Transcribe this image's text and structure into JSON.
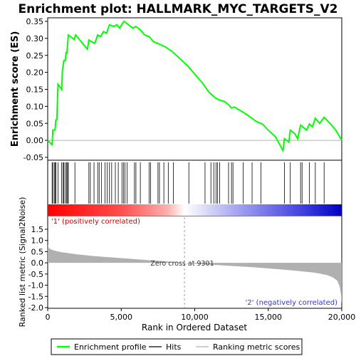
{
  "chart_data": {
    "title": "Enrichment plot: HALLMARK_MYC_TARGETS_V2",
    "x_axis": {
      "label": "Rank in Ordered Dataset",
      "range": [
        0,
        20000
      ],
      "ticks": [
        {
          "value": 0,
          "label": "0"
        },
        {
          "value": 5000,
          "label": "5,000"
        },
        {
          "value": 10000,
          "label": "10,000"
        },
        {
          "value": 15000,
          "label": "15,000"
        },
        {
          "value": 20000,
          "label": "20,000"
        }
      ]
    },
    "enrichment_panel": {
      "type": "line",
      "ylabel": "Enrichment score (ES)",
      "ylim": [
        -0.05,
        0.37
      ],
      "ticks": [
        {
          "value": 0.35,
          "label": "0.35"
        },
        {
          "value": 0.3,
          "label": "0.30"
        },
        {
          "value": 0.25,
          "label": "0.25"
        },
        {
          "value": 0.2,
          "label": "0.20"
        },
        {
          "value": 0.15,
          "label": "0.15"
        },
        {
          "value": 0.1,
          "label": "0.10"
        },
        {
          "value": 0.05,
          "label": "0.05"
        },
        {
          "value": 0.0,
          "label": "0.00"
        },
        {
          "value": -0.05,
          "label": "-0.05"
        }
      ],
      "color": "#00ff00",
      "points": [
        [
          0,
          0.0
        ],
        [
          300,
          -0.013
        ],
        [
          350,
          0.03
        ],
        [
          500,
          0.03
        ],
        [
          550,
          0.06
        ],
        [
          620,
          0.06
        ],
        [
          700,
          0.165
        ],
        [
          950,
          0.15
        ],
        [
          1000,
          0.205
        ],
        [
          1100,
          0.235
        ],
        [
          1200,
          0.235
        ],
        [
          1250,
          0.26
        ],
        [
          1300,
          0.255
        ],
        [
          1350,
          0.28
        ],
        [
          1400,
          0.31
        ],
        [
          1800,
          0.297
        ],
        [
          1900,
          0.31
        ],
        [
          2700,
          0.268
        ],
        [
          2800,
          0.295
        ],
        [
          3000,
          0.29
        ],
        [
          3200,
          0.285
        ],
        [
          3400,
          0.31
        ],
        [
          3600,
          0.305
        ],
        [
          3800,
          0.32
        ],
        [
          4000,
          0.315
        ],
        [
          4200,
          0.34
        ],
        [
          4500,
          0.335
        ],
        [
          4700,
          0.34
        ],
        [
          4900,
          0.33
        ],
        [
          5100,
          0.345
        ],
        [
          5200,
          0.35
        ],
        [
          5500,
          0.34
        ],
        [
          5800,
          0.33
        ],
        [
          6000,
          0.335
        ],
        [
          6300,
          0.325
        ],
        [
          6600,
          0.31
        ],
        [
          6900,
          0.305
        ],
        [
          7200,
          0.29
        ],
        [
          7500,
          0.285
        ],
        [
          8000,
          0.275
        ],
        [
          8500,
          0.26
        ],
        [
          9000,
          0.24
        ],
        [
          9500,
          0.22
        ],
        [
          10000,
          0.195
        ],
        [
          10500,
          0.17
        ],
        [
          11000,
          0.14
        ],
        [
          11400,
          0.125
        ],
        [
          11700,
          0.118
        ],
        [
          12000,
          0.115
        ],
        [
          12300,
          0.105
        ],
        [
          12500,
          0.095
        ],
        [
          12700,
          0.098
        ],
        [
          13000,
          0.09
        ],
        [
          13400,
          0.08
        ],
        [
          13800,
          0.068
        ],
        [
          14200,
          0.055
        ],
        [
          14600,
          0.048
        ],
        [
          15000,
          0.03
        ],
        [
          15500,
          0.01
        ],
        [
          16000,
          -0.03
        ],
        [
          16100,
          0.005
        ],
        [
          16400,
          -0.005
        ],
        [
          16500,
          0.03
        ],
        [
          16800,
          0.02
        ],
        [
          17000,
          0.005
        ],
        [
          17200,
          0.045
        ],
        [
          17600,
          0.03
        ],
        [
          17800,
          0.048
        ],
        [
          18000,
          0.04
        ],
        [
          18200,
          0.065
        ],
        [
          18500,
          0.05
        ],
        [
          18800,
          0.068
        ],
        [
          19200,
          0.05
        ],
        [
          19600,
          0.03
        ],
        [
          20000,
          0.0
        ]
      ]
    },
    "hits_panel": {
      "positions": [
        300,
        350,
        450,
        520,
        560,
        700,
        950,
        1050,
        1100,
        1200,
        1280,
        1350,
        1400,
        1850,
        2800,
        2900,
        3150,
        3400,
        3500,
        3650,
        3900,
        4050,
        4200,
        4350,
        4600,
        4800,
        5050,
        5150,
        5250,
        5400,
        5900,
        6000,
        6300,
        6900,
        7000,
        7500,
        7600,
        7900,
        8200,
        8550,
        9600,
        10700,
        11100,
        11300,
        11450,
        11550,
        11700,
        12300,
        12500,
        12600,
        13300,
        13900,
        14500,
        16100,
        16500,
        17200,
        17300,
        17800,
        18200,
        18800
      ]
    },
    "metric_panel": {
      "type": "area",
      "ylabel": "Ranked list metric (Signal2Noise)",
      "ylim": [
        -2.0,
        1.6
      ],
      "ticks": [
        {
          "value": 1.5,
          "label": "1.5"
        },
        {
          "value": 1.0,
          "label": "1.0"
        },
        {
          "value": 0.5,
          "label": "0.5"
        },
        {
          "value": 0.0,
          "label": "0.0"
        },
        {
          "value": -0.5,
          "label": "-0.5"
        },
        {
          "value": -1.0,
          "label": "-1.0"
        },
        {
          "value": -1.5,
          "label": "-1.5"
        },
        {
          "value": -2.0,
          "label": "-2.0"
        }
      ],
      "fill_color": "#b0b0b0",
      "points": [
        [
          0,
          0.8
        ],
        [
          100,
          0.65
        ],
        [
          300,
          0.58
        ],
        [
          600,
          0.52
        ],
        [
          1000,
          0.47
        ],
        [
          2000,
          0.38
        ],
        [
          3000,
          0.31
        ],
        [
          4000,
          0.26
        ],
        [
          5000,
          0.21
        ],
        [
          6000,
          0.16
        ],
        [
          7000,
          0.11
        ],
        [
          8000,
          0.07
        ],
        [
          9301,
          0.0
        ],
        [
          10000,
          -0.04
        ],
        [
          11000,
          -0.08
        ],
        [
          12000,
          -0.12
        ],
        [
          13000,
          -0.16
        ],
        [
          14000,
          -0.2
        ],
        [
          15000,
          -0.25
        ],
        [
          16000,
          -0.3
        ],
        [
          17000,
          -0.36
        ],
        [
          18000,
          -0.43
        ],
        [
          18500,
          -0.48
        ],
        [
          19000,
          -0.55
        ],
        [
          19400,
          -0.65
        ],
        [
          19700,
          -0.8
        ],
        [
          19850,
          -1.05
        ],
        [
          19950,
          -1.4
        ],
        [
          20000,
          -1.85
        ]
      ],
      "zero_cross_label": "Zero cross at 9301",
      "zero_cross": 9301,
      "positive_label": "'1' (positively correlated)",
      "positive_color": "#cc0000",
      "negative_label": "'2' (negatively correlated)",
      "negative_color": "#3333cc"
    },
    "legend": {
      "placement": "bottom",
      "items": [
        {
          "label": "Enrichment profile",
          "color": "#00ff00"
        },
        {
          "label": "Hits",
          "color": "#000000"
        },
        {
          "label": "Ranking metric scores",
          "color": "#b0b0b0"
        }
      ]
    }
  }
}
